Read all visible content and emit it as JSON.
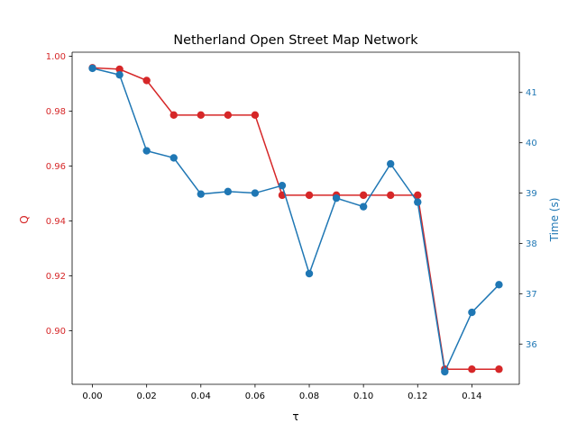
{
  "chart_data": {
    "type": "line",
    "title": "Netherland Open Street Map Network",
    "xlabel": "τ",
    "x": [
      0.0,
      0.01,
      0.02,
      0.03,
      0.04,
      0.05,
      0.06,
      0.07,
      0.08,
      0.09,
      0.1,
      0.11,
      0.12,
      0.13,
      0.14,
      0.15
    ],
    "xlim": [
      -0.0075,
      0.1575
    ],
    "xticks": [
      "0.00",
      "0.02",
      "0.04",
      "0.06",
      "0.08",
      "0.10",
      "0.12",
      "0.14"
    ],
    "left_axis": {
      "label": "Q",
      "color": "#d62728",
      "ylim": [
        0.8805,
        1.0015
      ],
      "ticks": [
        "0.90",
        "0.92",
        "0.94",
        "0.96",
        "0.98",
        "1.00"
      ]
    },
    "right_axis": {
      "label": "Time (s)",
      "color": "#1f77b4",
      "ylim": [
        35.2,
        41.8
      ],
      "ticks": [
        "36",
        "37",
        "38",
        "39",
        "40",
        "41"
      ]
    },
    "series": [
      {
        "axis": "left",
        "color": "#d62728",
        "values": [
          0.9958,
          0.9953,
          0.9912,
          0.9786,
          0.9786,
          0.9786,
          0.9786,
          0.9494,
          0.9494,
          0.9494,
          0.9494,
          0.9494,
          0.9494,
          0.886,
          0.886,
          0.886
        ]
      },
      {
        "axis": "right",
        "color": "#1f77b4",
        "values": [
          41.48,
          41.35,
          39.84,
          39.7,
          38.98,
          39.03,
          39.0,
          39.15,
          37.4,
          38.9,
          38.73,
          39.58,
          38.82,
          35.45,
          36.63,
          37.18
        ]
      }
    ],
    "grid": false,
    "legend": "none"
  }
}
